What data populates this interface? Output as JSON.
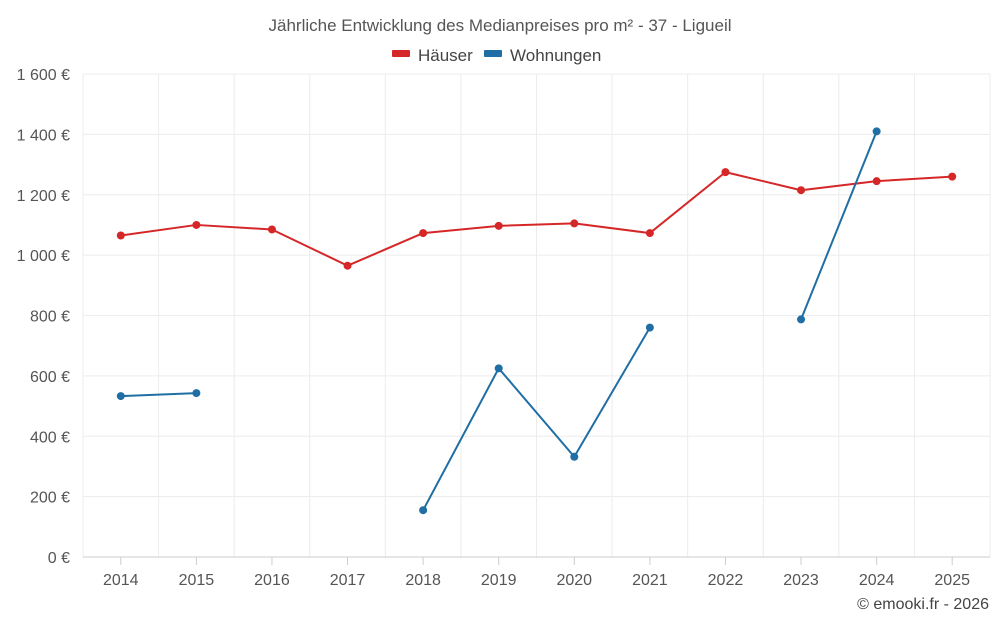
{
  "chart_data": {
    "type": "line",
    "title": "Jährliche Entwicklung des Medianpreises pro m² - 37 - Ligueil",
    "categories": [
      "2014",
      "2015",
      "2016",
      "2017",
      "2018",
      "2019",
      "2020",
      "2021",
      "2022",
      "2023",
      "2024",
      "2025"
    ],
    "y_ticks": [
      "0 €",
      "200 €",
      "400 €",
      "600 €",
      "800 €",
      "1 000 €",
      "1 200 €",
      "1 400 €",
      "1 600 €"
    ],
    "ylim": [
      0,
      1600
    ],
    "grid": true,
    "legend_position": "top-center",
    "series": [
      {
        "name": "Häuser",
        "color": "#d62728",
        "values": [
          1065,
          1100,
          1085,
          965,
          1073,
          1097,
          1105,
          1073,
          1275,
          1215,
          1245,
          1260
        ]
      },
      {
        "name": "Wohnungen",
        "color": "#1f6fa4",
        "values": [
          533,
          543,
          null,
          null,
          155,
          625,
          332,
          760,
          null,
          787,
          1410,
          null
        ]
      }
    ],
    "credit": "© emooki.fr - 2026"
  }
}
